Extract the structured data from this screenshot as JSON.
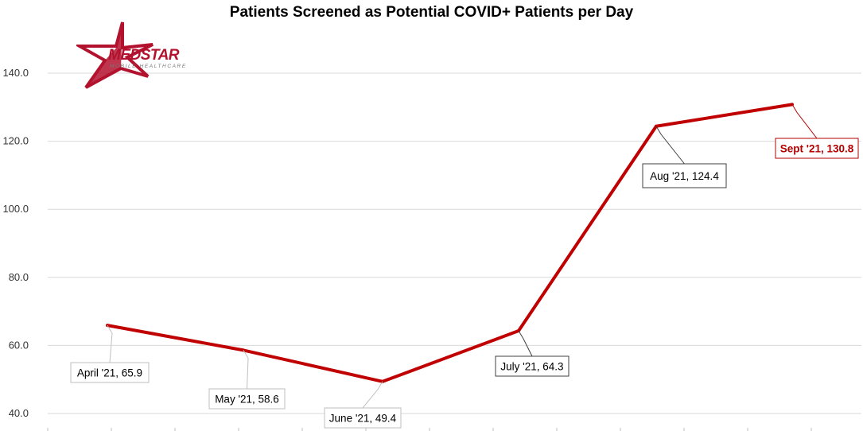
{
  "chart_data": {
    "type": "line",
    "title": "Patients Screened as Potential COVID+ Patients per Day",
    "xlabel": "",
    "ylabel": "",
    "ylim": [
      40,
      145
    ],
    "yticks": [
      "40.0",
      "60.0",
      "80.0",
      "100.0",
      "120.0",
      "140.0"
    ],
    "categories": [
      "April '21",
      "May '21",
      "June '21",
      "July '21",
      "Aug '21",
      "Sept '21"
    ],
    "series": [
      {
        "values": [
          65.9,
          58.6,
          49.4,
          64.3,
          124.4,
          130.8
        ],
        "color": "#c00000"
      }
    ],
    "data_labels": [
      "April '21, 65.9",
      "May '21, 58.6",
      "June '21, 49.4",
      "July '21, 64.3",
      "Aug '21, 124.4",
      "Sept '21, 130.8"
    ],
    "highlighted_label": "Sept '21, 130.8",
    "grid": true,
    "legend": "none"
  },
  "logo": {
    "name": "MEDSTAR",
    "tagline": "MOBILE HEALTHCARE",
    "color": "#b3122e"
  },
  "colors": {
    "line": "#c00000",
    "grid": "#d9d9d9",
    "highlight_label": "#b30000"
  }
}
